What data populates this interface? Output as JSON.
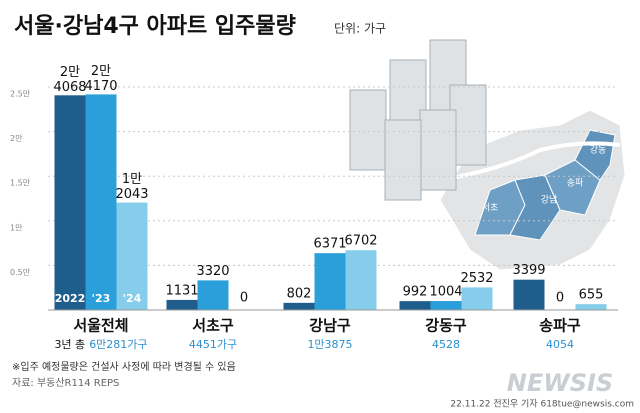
{
  "chart_data": {
    "type": "bar",
    "title": "서울·강남4구 아파트 입주물량",
    "unit": "단위: 가구",
    "categories": [
      "서울전체",
      "서초구",
      "강남구",
      "강동구",
      "송파구"
    ],
    "totals_prefix": "3년 총",
    "totals": [
      {
        "value": 60281,
        "label": "6만281가구"
      },
      {
        "value": 4451,
        "label": "4451가구"
      },
      {
        "value": 13875,
        "label": "1만3875"
      },
      4528,
      4054
    ],
    "series": [
      {
        "name": "2022",
        "color": "#1f5e8c",
        "values": [
          24068,
          1131,
          802,
          992,
          3399
        ],
        "value_labels": [
          [
            "2만",
            "4068"
          ],
          null,
          null,
          null,
          null
        ]
      },
      {
        "name": "'23",
        "color": "#2b9fd9",
        "values": [
          24170,
          3320,
          6371,
          1004,
          0
        ],
        "value_labels": [
          [
            "2만",
            "4170"
          ],
          null,
          null,
          null,
          null
        ]
      },
      {
        "name": "'24",
        "color": "#86cdec",
        "values": [
          12043,
          0,
          6702,
          2532,
          655
        ],
        "value_labels": [
          [
            "1만",
            "2043"
          ],
          null,
          null,
          null,
          null
        ]
      }
    ],
    "ylim": [
      0,
      25000
    ],
    "yticks": [
      {
        "value": 5000,
        "label": "0.5만"
      },
      {
        "value": 10000,
        "label": "1만"
      },
      {
        "value": 15000,
        "label": "1.5만"
      },
      {
        "value": 20000,
        "label": "2만"
      },
      {
        "value": 25000,
        "label": "2.5만"
      }
    ],
    "grid": true,
    "map_labels": [
      "강동",
      "송파",
      "서초",
      "강남"
    ],
    "note": "※입주 예정물량은 건설사 사정에 따라 변경될 수 있음",
    "source": "자료: 부동산R114 REPS",
    "credit": "22.11.22 전진우 기자 618tue@newsis.com",
    "watermark": "NEWSIS"
  }
}
